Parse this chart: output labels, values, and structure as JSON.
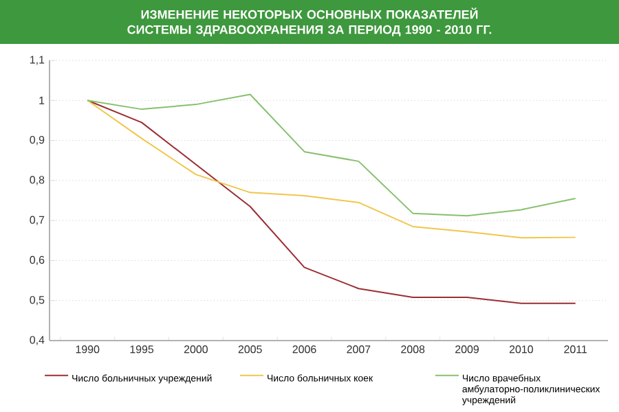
{
  "chart_data": {
    "type": "line",
    "title": "ИЗМЕНЕНИЕ НЕКОТОРЫХ ОСНОВНЫХ ПОКАЗАТЕЛЕЙ СИСТЕМЫ ЗДРАВООХРАНЕНИЯ ЗА ПЕРИОД 1990 - 2010 ГГ.",
    "categories": [
      "1990",
      "1995",
      "2000",
      "2005",
      "2006",
      "2007",
      "2008",
      "2009",
      "2010",
      "2011"
    ],
    "series": [
      {
        "name": "Число больничных учреждений",
        "color": "#9b2d33",
        "values": [
          1.0,
          0.945,
          0.84,
          0.735,
          0.583,
          0.53,
          0.508,
          0.508,
          0.493,
          0.493
        ]
      },
      {
        "name": "Число больничных коек",
        "color": "#f0c64a",
        "values": [
          1.0,
          0.905,
          0.815,
          0.77,
          0.762,
          0.745,
          0.685,
          0.672,
          0.657,
          0.658
        ]
      },
      {
        "name": "Число врачебных амбулаторно-поликлинических учреждений",
        "color": "#86c06e",
        "values": [
          1.0,
          0.978,
          0.99,
          1.015,
          0.872,
          0.848,
          0.718,
          0.712,
          0.727,
          0.755
        ]
      }
    ],
    "ylim": [
      0.4,
      1.1
    ],
    "yticks": [
      {
        "value": 0.4,
        "label": "0,4"
      },
      {
        "value": 0.5,
        "label": "0,5"
      },
      {
        "value": 0.6,
        "label": "0,6"
      },
      {
        "value": 0.7,
        "label": "0,7"
      },
      {
        "value": 0.8,
        "label": "0,8"
      },
      {
        "value": 0.9,
        "label": "0,9"
      },
      1,
      {
        "value": 1.1,
        "label": "1,1"
      }
    ],
    "grid": "y",
    "legend": "bottom",
    "marker": "none",
    "line_style": "solid"
  }
}
